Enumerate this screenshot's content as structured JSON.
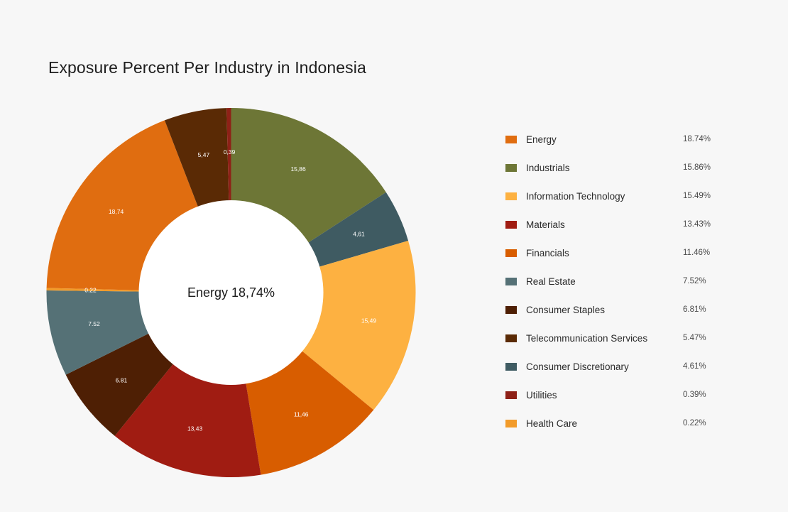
{
  "chart_data": {
    "type": "pie",
    "title": "Exposure Percent Per Industry in Indonesia",
    "center_label": "Energy 18,74%",
    "slices": [
      {
        "name": "Industrials",
        "value": 15.86,
        "label": "15,86",
        "color": "#6d7636"
      },
      {
        "name": "Consumer Discretionary",
        "value": 4.61,
        "label": "4,61",
        "color": "#3f5b62"
      },
      {
        "name": "Information Technology",
        "value": 15.49,
        "label": "15,49",
        "color": "#fdb141"
      },
      {
        "name": "Financials",
        "value": 11.46,
        "label": "11,46",
        "color": "#d85d00"
      },
      {
        "name": "Materials",
        "value": 13.43,
        "label": "13,43",
        "color": "#a01c12"
      },
      {
        "name": "Consumer Staples",
        "value": 6.81,
        "label": "6.81",
        "color": "#4e1f04"
      },
      {
        "name": "Real Estate",
        "value": 7.52,
        "label": "7.52",
        "color": "#557176"
      },
      {
        "name": "Health Care",
        "value": 0.22,
        "label": "0.22",
        "color": "#f29b2a"
      },
      {
        "name": "Energy",
        "value": 18.74,
        "label": "18,74",
        "color": "#e06d10"
      },
      {
        "name": "Telecommunication Services",
        "value": 5.47,
        "label": "5,47",
        "color": "#5a2a05"
      },
      {
        "name": "Utilities",
        "value": 0.39,
        "label": "0,39",
        "color": "#8e2117"
      }
    ],
    "legend": [
      {
        "name": "Energy",
        "value": "18.74%",
        "color": "#e06d10"
      },
      {
        "name": "Industrials",
        "value": "15.86%",
        "color": "#6d7636"
      },
      {
        "name": "Information Technology",
        "value": "15.49%",
        "color": "#fdb141"
      },
      {
        "name": "Materials",
        "value": "13.43%",
        "color": "#a01c12"
      },
      {
        "name": "Financials",
        "value": "11.46%",
        "color": "#d85d00"
      },
      {
        "name": "Real Estate",
        "value": "7.52%",
        "color": "#557176"
      },
      {
        "name": "Consumer Staples",
        "value": "6.81%",
        "color": "#4e1f04"
      },
      {
        "name": "Telecommunication Services",
        "value": "5.47%",
        "color": "#5a2a05"
      },
      {
        "name": "Consumer Discretionary",
        "value": "4.61%",
        "color": "#3f5b62"
      },
      {
        "name": "Utilities",
        "value": "0.39%",
        "color": "#8e2117"
      },
      {
        "name": "Health Care",
        "value": "0.22%",
        "color": "#f29b2a"
      }
    ],
    "legend_position": "right"
  }
}
